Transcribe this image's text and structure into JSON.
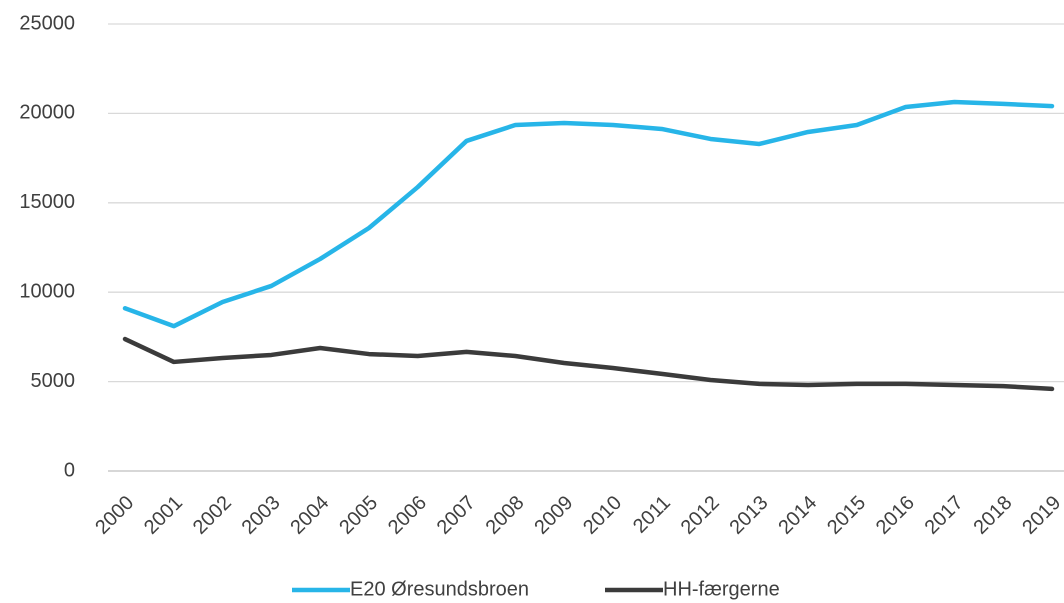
{
  "chart_data": {
    "type": "line",
    "categories": [
      "2000",
      "2001",
      "2002",
      "2003",
      "2004",
      "2005",
      "2006",
      "2007",
      "2008",
      "2009",
      "2010",
      "2011",
      "2012",
      "2013",
      "2014",
      "2015",
      "2016",
      "2017",
      "2018",
      "2019"
    ],
    "series": [
      {
        "name": "E20 Øresundsbroen",
        "color": "#27b5e8",
        "values": [
          9100,
          8100,
          9450,
          10350,
          11860,
          13590,
          15880,
          18460,
          19350,
          19460,
          19350,
          19130,
          18570,
          18290,
          18960,
          19350,
          20360,
          20640,
          20530,
          20410
        ]
      },
      {
        "name": "HH-færgerne",
        "color": "#3b3b3b",
        "values": [
          7380,
          6100,
          6320,
          6490,
          6880,
          6540,
          6430,
          6660,
          6430,
          6040,
          5760,
          5430,
          5090,
          4870,
          4810,
          4870,
          4870,
          4810,
          4750,
          4590
        ]
      }
    ],
    "ylim": [
      0,
      25000
    ],
    "yticks": [
      0,
      5000,
      10000,
      15000,
      20000,
      25000
    ],
    "grid": true,
    "legend": "bottom"
  }
}
